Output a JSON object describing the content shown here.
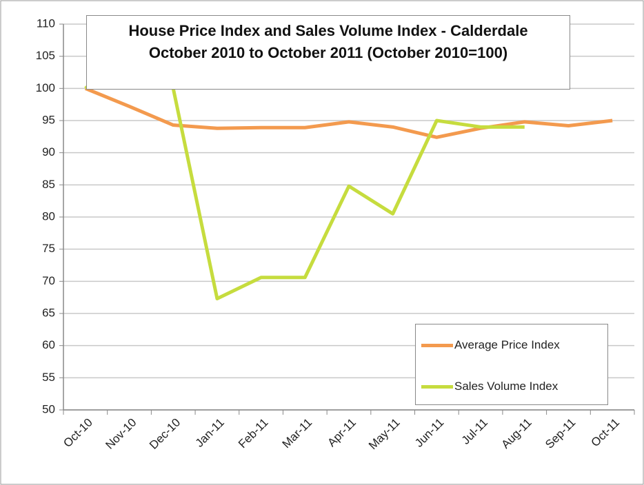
{
  "chart_data": {
    "type": "line",
    "title": "House Price Index and Sales Volume Index - Calderdale October 2010 to October 2011 (October 2010=100)",
    "categories": [
      "Oct-10",
      "Nov-10",
      "Dec-10",
      "Jan-11",
      "Feb-11",
      "Mar-11",
      "Apr-11",
      "May-11",
      "Jun-11",
      "Jul-11",
      "Aug-11",
      "Sep-11",
      "Oct-11"
    ],
    "series": [
      {
        "name": "Average Price Index",
        "color": "#f39a4e",
        "values": [
          100,
          97.2,
          94.3,
          93.8,
          93.9,
          93.9,
          94.8,
          94.0,
          92.4,
          93.8,
          94.8,
          94.2,
          95.0
        ]
      },
      {
        "name": "Sales Volume Index",
        "color": "#c6dc3e",
        "values": [
          100,
          106,
          100,
          67.3,
          70.6,
          70.6,
          84.8,
          80.5,
          95.0,
          94.0,
          94.0,
          null,
          null
        ]
      }
    ],
    "ylim": [
      50,
      110
    ],
    "yticks": [
      50,
      55,
      60,
      65,
      70,
      75,
      80,
      85,
      90,
      95,
      100,
      105,
      110
    ],
    "grid": true,
    "legend": "lower right"
  }
}
